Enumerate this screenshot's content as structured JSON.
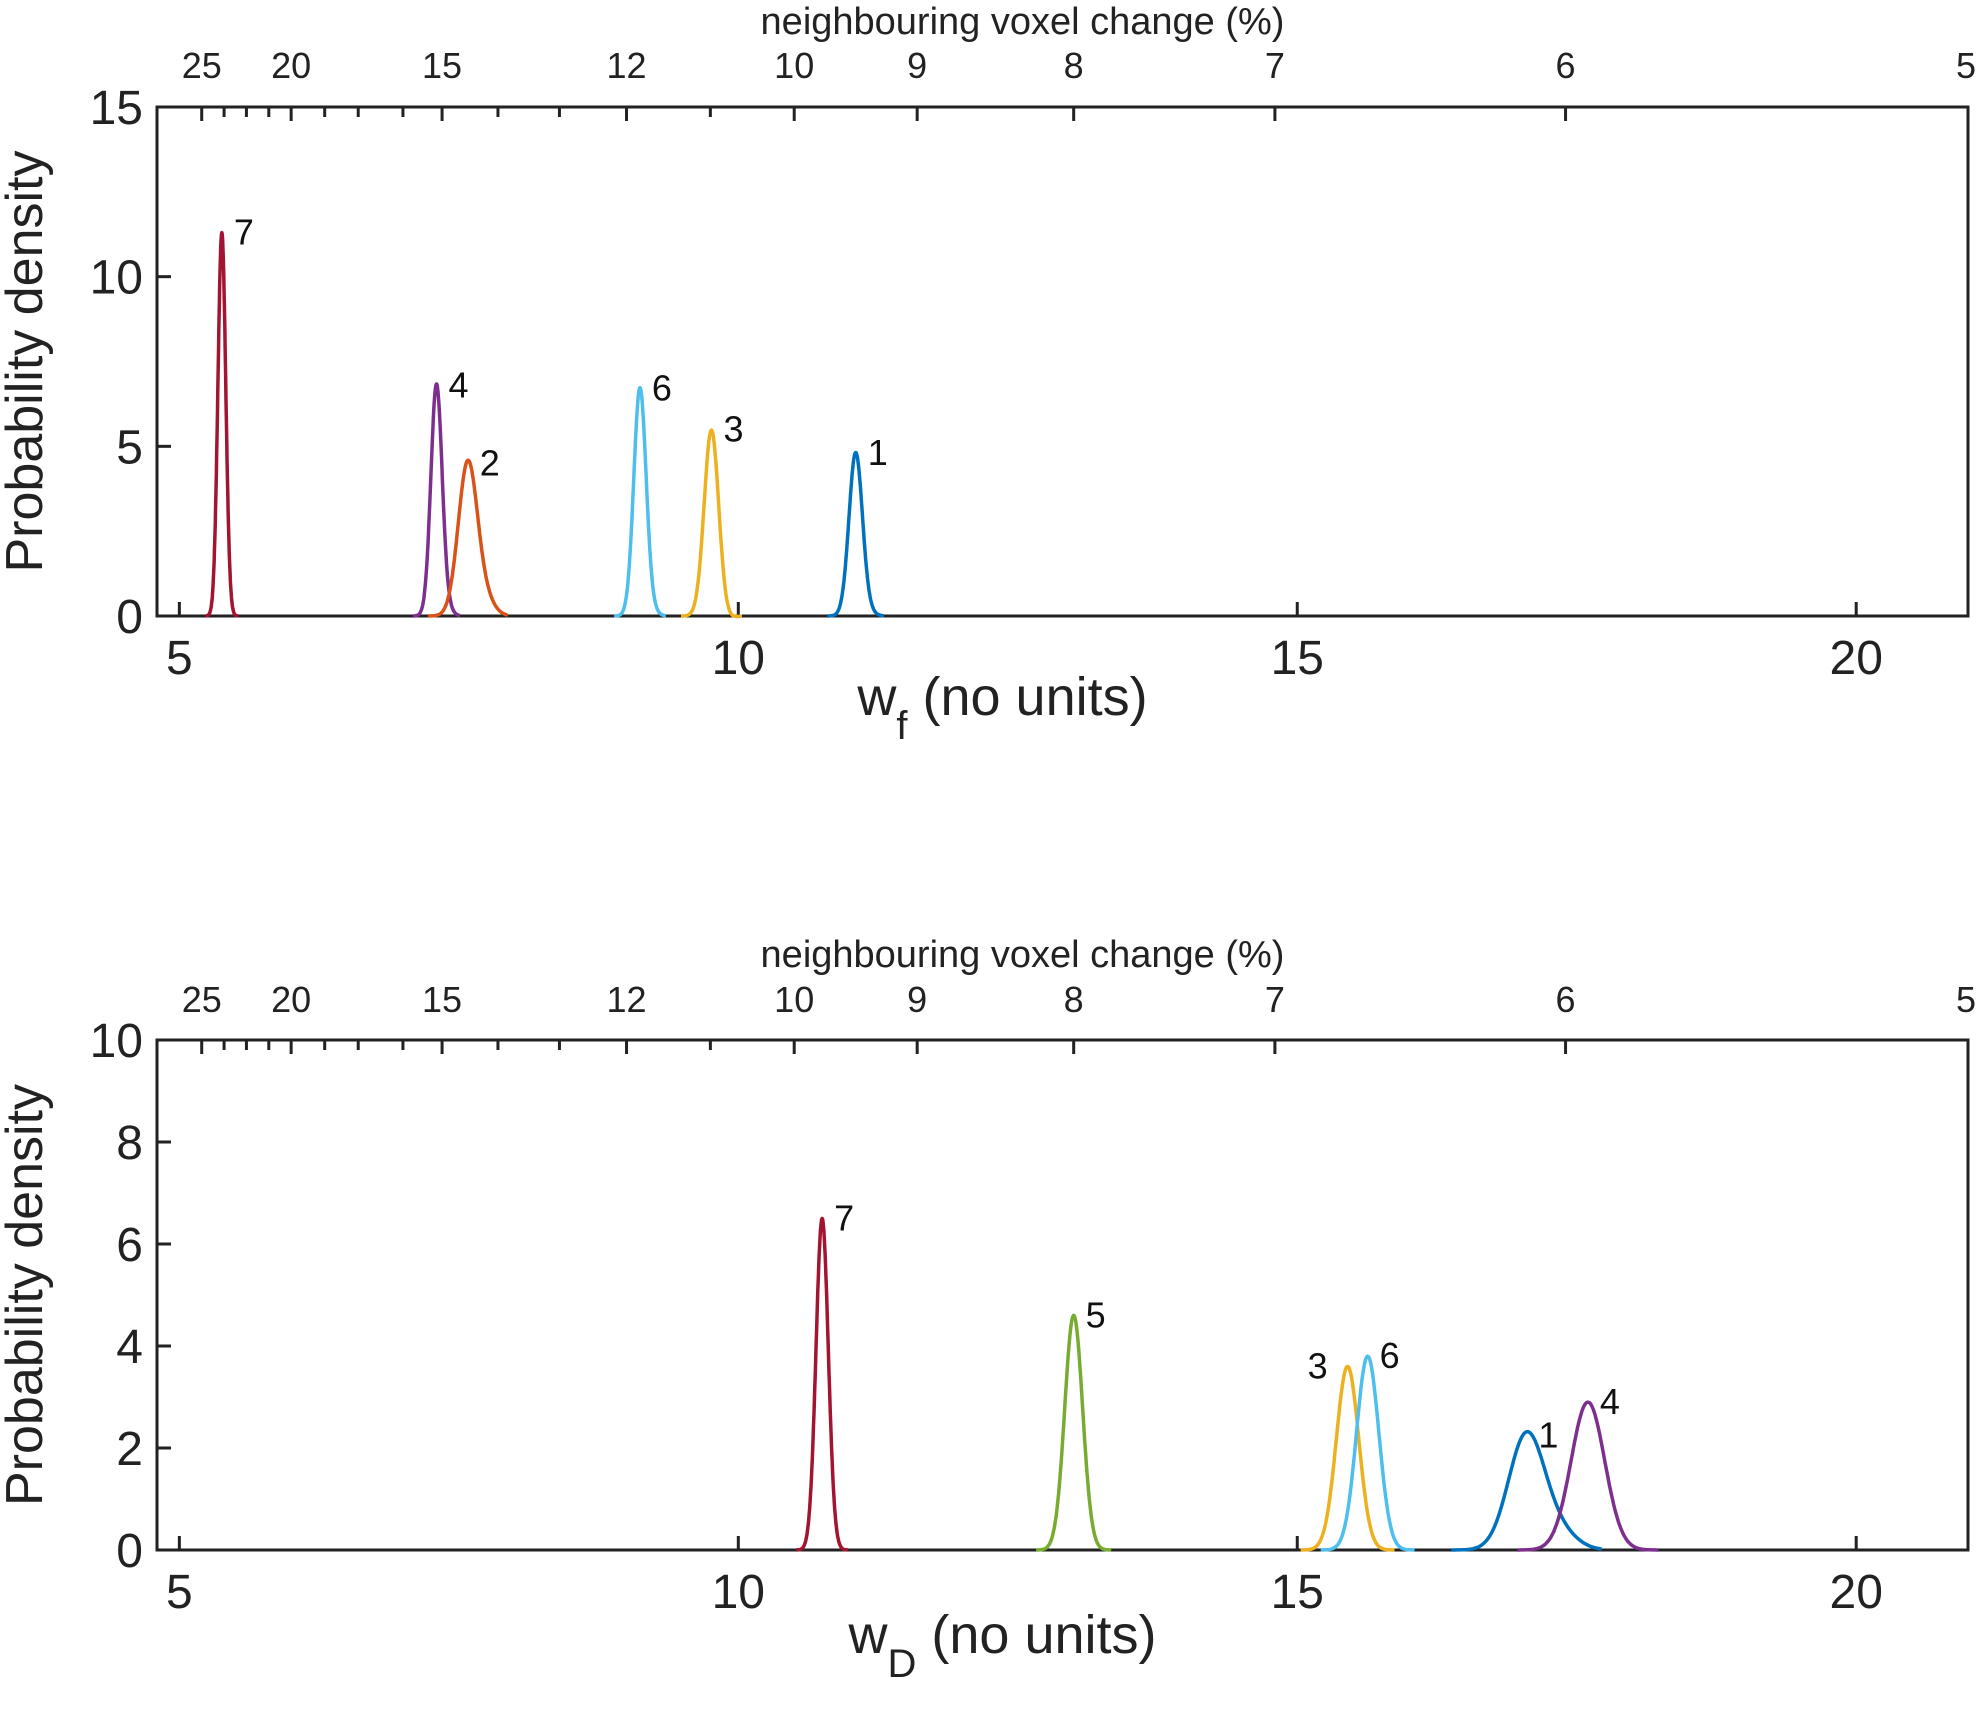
{
  "chart_data": [
    {
      "type": "line",
      "title": "",
      "xlabel": "w",
      "xlabel_sub": "f",
      "xlabel_suffix": " (no units)",
      "ylabel": "Probability density",
      "xlim": [
        4.8,
        21
      ],
      "ylim": [
        0,
        15
      ],
      "xticks": [
        5,
        10,
        15,
        20
      ],
      "yticks": [
        0,
        5,
        10,
        15
      ],
      "top_axis": {
        "label": "neighbouring voxel change (%)",
        "major": [
          {
            "label": "25",
            "x": 5.2
          },
          {
            "label": "20",
            "x": 6.0
          },
          {
            "label": "15",
            "x": 7.35
          },
          {
            "label": "12",
            "x": 9.0
          },
          {
            "label": "10",
            "x": 10.5
          },
          {
            "label": "9",
            "x": 11.6
          },
          {
            "label": "8",
            "x": 13.0
          },
          {
            "label": "7",
            "x": 14.8
          },
          {
            "label": "6",
            "x": 17.4
          },
          {
            "label": "5",
            "x": 21.0
          }
        ],
        "minor": [
          5.4,
          5.6,
          5.8,
          6.3,
          6.6,
          7.0,
          7.85,
          8.4,
          9.75
        ]
      },
      "series": [
        {
          "name": "7",
          "label": "7",
          "color": "#A2142F",
          "mean": 5.38,
          "peak": 11.3,
          "sd": 0.035,
          "skew": 0
        },
        {
          "name": "4",
          "label": "4",
          "color": "#7E2F8E",
          "mean": 7.3,
          "peak": 6.8,
          "sd": 0.05,
          "skew": 0.03
        },
        {
          "name": "2",
          "label": "2",
          "color": "#D95319",
          "mean": 7.58,
          "peak": 4.5,
          "sd": 0.085,
          "skew": 0.1
        },
        {
          "name": "6",
          "label": "6",
          "color": "#4DBEEE",
          "mean": 9.12,
          "peak": 6.7,
          "sd": 0.055,
          "skew": 0.02
        },
        {
          "name": "3",
          "label": "3",
          "color": "#EDB120",
          "mean": 9.76,
          "peak": 5.5,
          "sd": 0.065,
          "skew": -0.02
        },
        {
          "name": "1",
          "label": "1",
          "color": "#0072BD",
          "mean": 11.05,
          "peak": 4.8,
          "sd": 0.06,
          "skew": 0.02
        }
      ]
    },
    {
      "type": "line",
      "title": "",
      "xlabel": "w",
      "xlabel_sub": "D",
      "xlabel_suffix": " (no units)",
      "ylabel": "Probability density",
      "xlim": [
        4.8,
        21
      ],
      "ylim": [
        0,
        10
      ],
      "xticks": [
        5,
        10,
        15,
        20
      ],
      "yticks": [
        0,
        2,
        4,
        6,
        8,
        10
      ],
      "top_axis": {
        "label": "neighbouring voxel change (%)",
        "major": [
          {
            "label": "25",
            "x": 5.2
          },
          {
            "label": "20",
            "x": 6.0
          },
          {
            "label": "15",
            "x": 7.35
          },
          {
            "label": "12",
            "x": 9.0
          },
          {
            "label": "10",
            "x": 10.5
          },
          {
            "label": "9",
            "x": 11.6
          },
          {
            "label": "8",
            "x": 13.0
          },
          {
            "label": "7",
            "x": 14.8
          },
          {
            "label": "6",
            "x": 17.4
          },
          {
            "label": "5",
            "x": 21.0
          }
        ],
        "minor": [
          5.4,
          5.6,
          5.8,
          6.3,
          6.6,
          7.0,
          7.85,
          8.4,
          9.75
        ]
      },
      "series": [
        {
          "name": "7",
          "label": "7",
          "color": "#A2142F",
          "mean": 10.75,
          "peak": 6.5,
          "sd": 0.055,
          "skew": 0
        },
        {
          "name": "5",
          "label": "5",
          "color": "#77AC30",
          "mean": 13.0,
          "peak": 4.6,
          "sd": 0.08,
          "skew": 0
        },
        {
          "name": "3",
          "label": "3",
          "color": "#EDB120",
          "mean": 15.45,
          "peak": 3.6,
          "sd": 0.1,
          "skew": 0
        },
        {
          "name": "6",
          "label": "6",
          "color": "#4DBEEE",
          "mean": 15.63,
          "peak": 3.8,
          "sd": 0.1,
          "skew": 0
        },
        {
          "name": "1",
          "label": "1",
          "color": "#0072BD",
          "mean": 17.05,
          "peak": 2.25,
          "sd": 0.16,
          "skew": 0.15
        },
        {
          "name": "4",
          "label": "4",
          "color": "#7E2F8E",
          "mean": 17.6,
          "peak": 2.9,
          "sd": 0.15,
          "skew": 0
        }
      ]
    }
  ]
}
